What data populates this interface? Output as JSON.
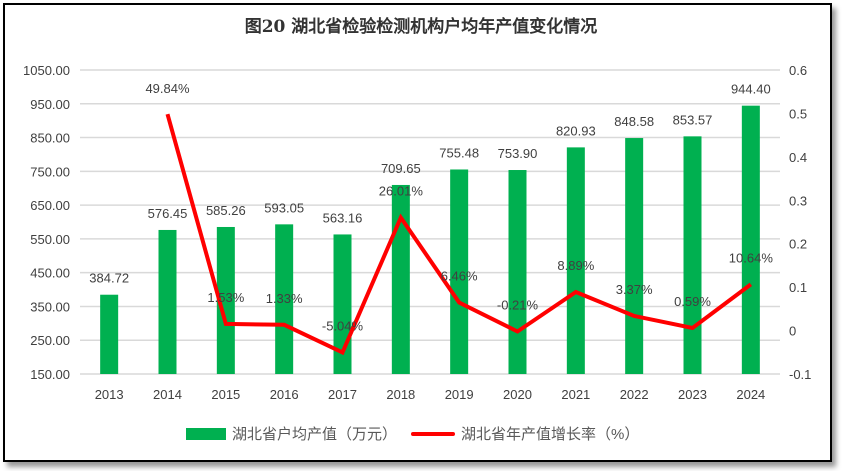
{
  "chart_data": {
    "type": "bar+line",
    "title": "图20  湖北省检验检测机构户均年产值变化情况",
    "categories": [
      "2013",
      "2014",
      "2015",
      "2016",
      "2017",
      "2018",
      "2019",
      "2020",
      "2021",
      "2022",
      "2023",
      "2024"
    ],
    "series": [
      {
        "name": "湖北省户均产值（万元）",
        "type": "bar",
        "axis": "left",
        "color": "#00b050",
        "values": [
          384.72,
          576.45,
          585.26,
          593.05,
          563.16,
          709.65,
          755.48,
          753.9,
          820.93,
          848.58,
          853.57,
          944.4
        ],
        "labels": [
          "384.72",
          "576.45",
          "585.26",
          "593.05",
          "563.16",
          "709.65",
          "755.48",
          "753.90",
          "820.93",
          "848.58",
          "853.57",
          "944.40"
        ]
      },
      {
        "name": "湖北省年产值增长率（%）",
        "type": "line",
        "axis": "right",
        "color": "#ff0000",
        "values": [
          null,
          49.84,
          1.53,
          1.33,
          -5.04,
          26.01,
          6.46,
          -0.21,
          8.89,
          3.37,
          0.59,
          10.64
        ],
        "labels": [
          "",
          "49.84%",
          "1.53%",
          "1.33%",
          "-5.04%",
          "26.01%",
          "6.46%",
          "-0.21%",
          "8.89%",
          "3.37%",
          "0.59%",
          "10.64%"
        ]
      }
    ],
    "left_axis": {
      "range": [
        150,
        1050
      ],
      "ticks": [
        "150.00",
        "250.00",
        "350.00",
        "450.00",
        "550.00",
        "650.00",
        "750.00",
        "850.00",
        "950.00",
        "1050.00"
      ]
    },
    "right_axis": {
      "range": [
        -0.1,
        0.6
      ],
      "ticks": [
        "-0.1",
        "0",
        "0.1",
        "0.2",
        "0.3",
        "0.4",
        "0.5",
        "0.6"
      ]
    },
    "grid": "horizontal",
    "legend_position": "bottom"
  }
}
